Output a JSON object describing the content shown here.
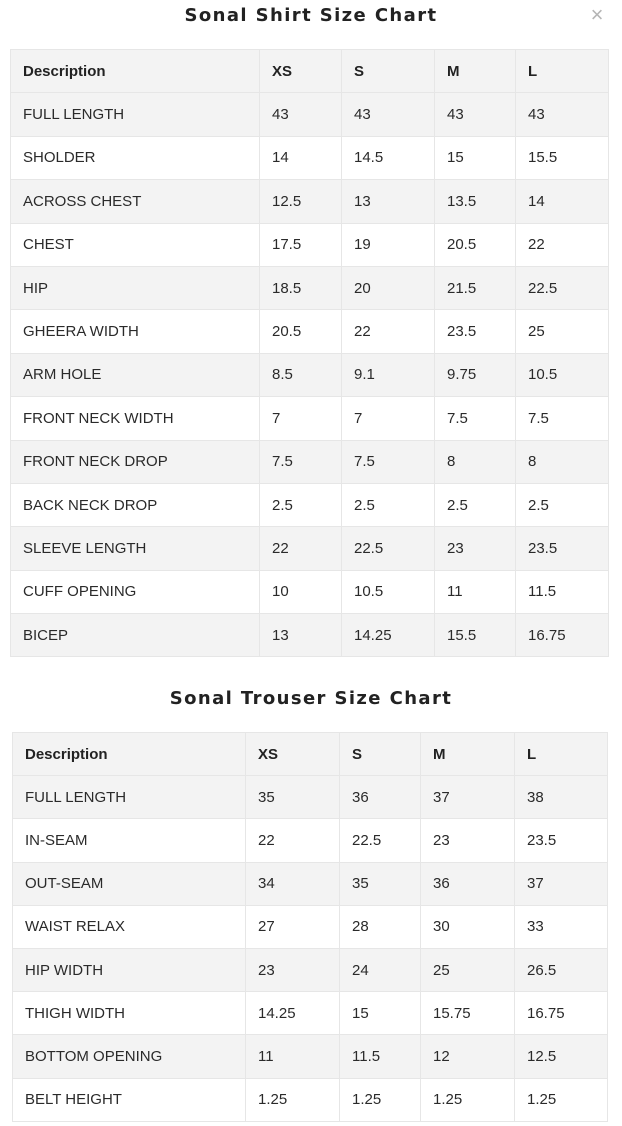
{
  "close_icon": "×",
  "shirt": {
    "title": "Sonal Shirt Size Chart",
    "headers": [
      "Description",
      "XS",
      "S",
      "M",
      "L"
    ],
    "rows": [
      [
        "FULL LENGTH",
        "43",
        "43",
        "43",
        "43"
      ],
      [
        "SHOLDER",
        "14",
        "14.5",
        "15",
        "15.5"
      ],
      [
        "ACROSS CHEST",
        "12.5",
        "13",
        "13.5",
        "14"
      ],
      [
        "CHEST",
        "17.5",
        "19",
        "20.5",
        "22"
      ],
      [
        "HIP",
        "18.5",
        "20",
        "21.5",
        "22.5"
      ],
      [
        "GHEERA WIDTH",
        "20.5",
        "22",
        "23.5",
        "25"
      ],
      [
        "ARM HOLE",
        "8.5",
        "9.1",
        "9.75",
        "10.5"
      ],
      [
        "FRONT NECK WIDTH",
        "7",
        "7",
        "7.5",
        "7.5"
      ],
      [
        "FRONT NECK DROP",
        "7.5",
        "7.5",
        "8",
        "8"
      ],
      [
        "BACK NECK DROP",
        "2.5",
        "2.5",
        "2.5",
        "2.5"
      ],
      [
        "SLEEVE LENGTH",
        "22",
        "22.5",
        "23",
        "23.5"
      ],
      [
        "CUFF OPENING",
        "10",
        "10.5",
        "11",
        "11.5"
      ],
      [
        "BICEP",
        "13",
        "14.25",
        "15.5",
        "16.75"
      ]
    ]
  },
  "trouser": {
    "title": "Sonal Trouser Size Chart",
    "headers": [
      "Description",
      "XS",
      "S",
      "M",
      "L"
    ],
    "rows": [
      [
        "FULL LENGTH",
        "35",
        "36",
        "37",
        "38"
      ],
      [
        "IN-SEAM",
        "22",
        "22.5",
        "23",
        "23.5"
      ],
      [
        "OUT-SEAM",
        "34",
        "35",
        "36",
        "37"
      ],
      [
        "WAIST RELAX",
        "27",
        "28",
        "30",
        "33"
      ],
      [
        "HIP WIDTH",
        "23",
        "24",
        "25",
        "26.5"
      ],
      [
        "THIGH WIDTH",
        "14.25",
        "15",
        "15.75",
        "16.75"
      ],
      [
        "BOTTOM OPENING",
        "11",
        "11.5",
        "12",
        "12.5"
      ],
      [
        "BELT HEIGHT",
        "1.25",
        "1.25",
        "1.25",
        "1.25"
      ]
    ]
  }
}
